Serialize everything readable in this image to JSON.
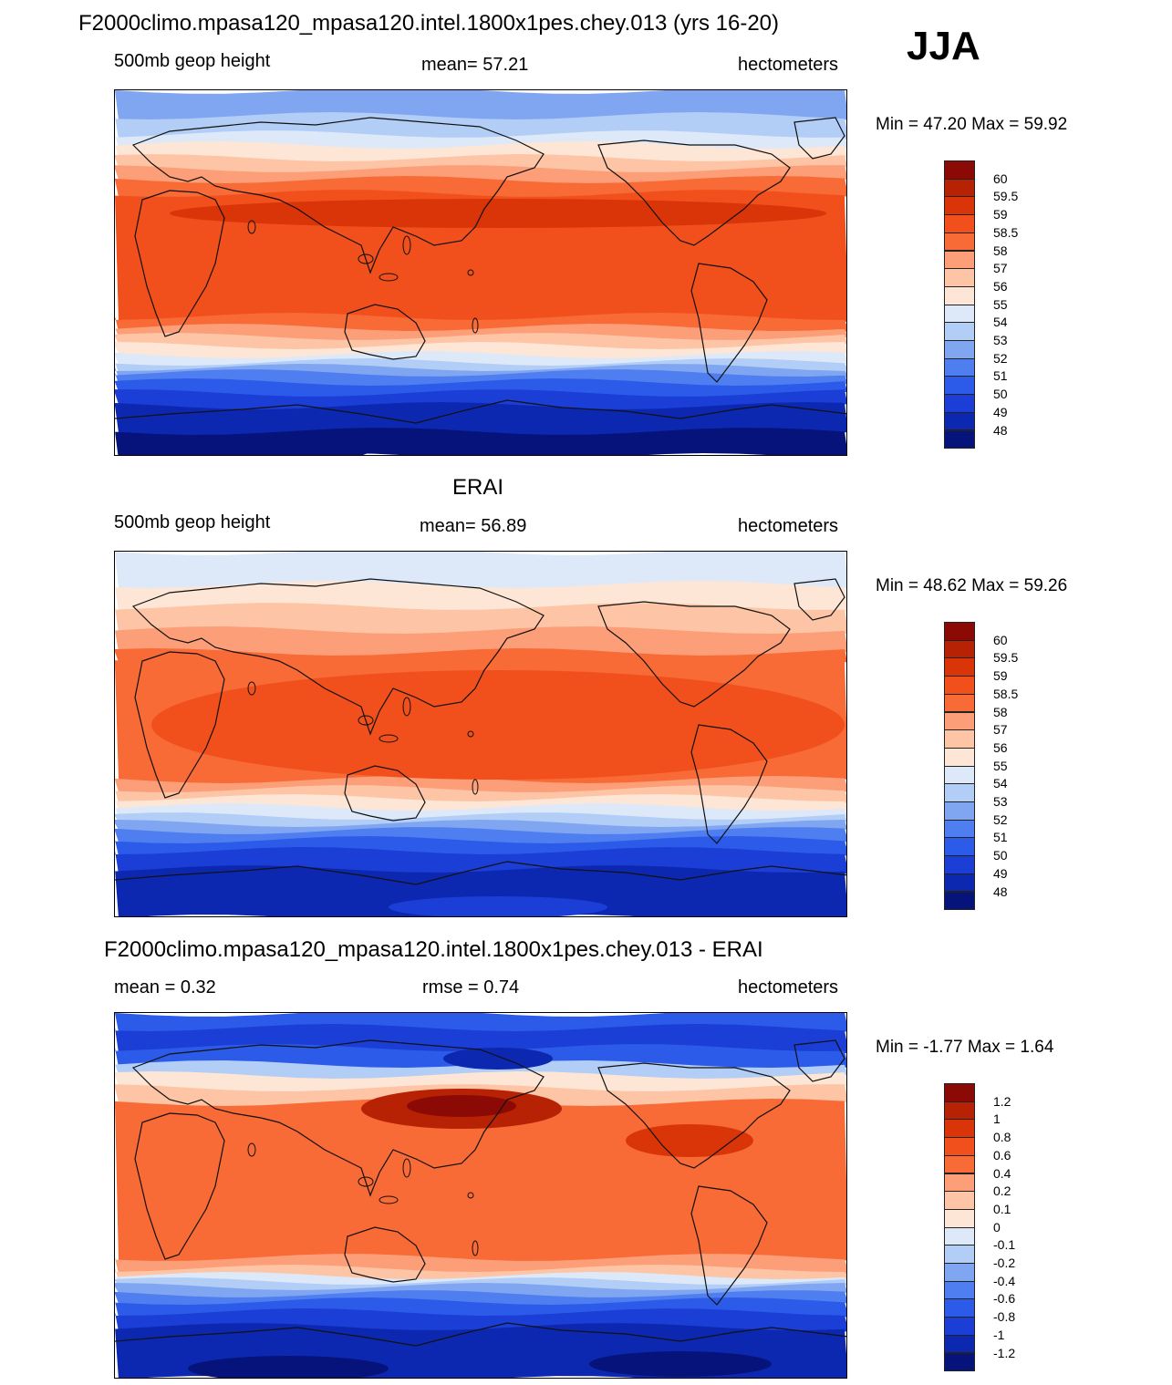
{
  "title": "F2000climo.mpasa120_mpasa120.intel.1800x1pes.chey.013 (yrs 16-20)",
  "season": "JJA",
  "panels": [
    {
      "title": "",
      "left": "500mb geop height",
      "center": "mean=  57.21",
      "right": "hectometers",
      "minmax": "Min =  47.20 Max =  59.92",
      "map_kind": "model",
      "legend": {
        "labels": [
          "60",
          "59.5",
          "59",
          "58.5",
          "58",
          "57",
          "56",
          "55",
          "54",
          "53",
          "52",
          "51",
          "50",
          "49",
          "48"
        ],
        "colors": [
          "#8b0a06",
          "#b72104",
          "#d93508",
          "#f1501c",
          "#f86a36",
          "#fc9e77",
          "#fdc5a5",
          "#fde6d6",
          "#dde9f9",
          "#b2cdf6",
          "#80a6f2",
          "#4f7ef0",
          "#2c5bea",
          "#1a3ed6",
          "#0d28b0",
          "#06137a"
        ]
      }
    },
    {
      "title": "ERAI",
      "left": "500mb geop height",
      "center": "mean=  56.89",
      "right": "hectometers",
      "minmax": "Min =  48.62 Max =  59.26",
      "map_kind": "erai",
      "legend": {
        "labels": [
          "60",
          "59.5",
          "59",
          "58.5",
          "58",
          "57",
          "56",
          "55",
          "54",
          "53",
          "52",
          "51",
          "50",
          "49",
          "48"
        ],
        "colors": [
          "#8b0a06",
          "#b72104",
          "#d93508",
          "#f1501c",
          "#f86a36",
          "#fc9e77",
          "#fdc5a5",
          "#fde6d6",
          "#dde9f9",
          "#b2cdf6",
          "#80a6f2",
          "#4f7ef0",
          "#2c5bea",
          "#1a3ed6",
          "#0d28b0",
          "#06137a"
        ]
      }
    },
    {
      "title": "F2000climo.mpasa120_mpasa120.intel.1800x1pes.chey.013 - ERAI",
      "left": "mean =   0.32",
      "center": "rmse =   0.74",
      "right": "hectometers",
      "minmax": "Min =  -1.77 Max =   1.64",
      "map_kind": "diff",
      "legend": {
        "labels": [
          "1.2",
          "1",
          "0.8",
          "0.6",
          "0.4",
          "0.2",
          "0.1",
          "0",
          "-0.1",
          "-0.2",
          "-0.4",
          "-0.6",
          "-0.8",
          "-1",
          "-1.2"
        ],
        "colors": [
          "#8b0a06",
          "#b72104",
          "#d93508",
          "#f1501c",
          "#f86a36",
          "#fc9e77",
          "#fdc5a5",
          "#fde6d6",
          "#dde9f9",
          "#b2cdf6",
          "#80a6f2",
          "#4f7ef0",
          "#2c5bea",
          "#1a3ed6",
          "#0d28b0",
          "#06137a"
        ]
      }
    }
  ]
}
